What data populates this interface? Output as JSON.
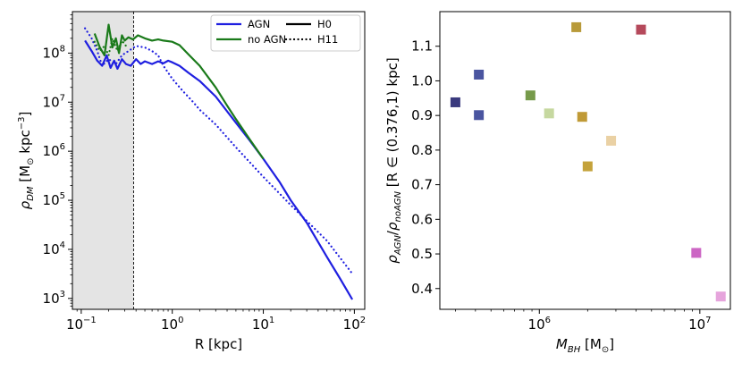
{
  "chart_data": [
    {
      "type": "line",
      "xlabel": "R [kpc]",
      "ylabel": "ρ_DM [M⊙ kpc⁻³]",
      "xscale": "log",
      "yscale": "log",
      "xlim": [
        0.08,
        130
      ],
      "ylim": [
        600,
        700000000
      ],
      "xticks": [
        {
          "value": 0.1,
          "mant": "10",
          "exp": "−1"
        },
        {
          "value": 1,
          "mant": "10",
          "exp": "0"
        },
        {
          "value": 10,
          "mant": "10",
          "exp": "1"
        },
        {
          "value": 100,
          "mant": "10",
          "exp": "2"
        }
      ],
      "yticks": [
        {
          "value": 1000,
          "mant": "10",
          "exp": "3"
        },
        {
          "value": 10000,
          "mant": "10",
          "exp": "4"
        },
        {
          "value": 100000,
          "mant": "10",
          "exp": "5"
        },
        {
          "value": 1000000,
          "mant": "10",
          "exp": "6"
        },
        {
          "value": 10000000,
          "mant": "10",
          "exp": "7"
        },
        {
          "value": 100000000,
          "mant": "10",
          "exp": "8"
        }
      ],
      "shaded_region": {
        "x": [
          0.08,
          0.376
        ],
        "color": "#e4e4e4"
      },
      "vline": 0.376,
      "legend": {
        "placement": "top-right",
        "entries": [
          {
            "label": "AGN",
            "color": "#1f1fe0",
            "style": "solid"
          },
          {
            "label": "H0",
            "color": "#000000",
            "style": "solid"
          },
          {
            "label": "no AGN",
            "color": "#1a7a1a",
            "style": "solid"
          },
          {
            "label": "H11",
            "color": "#000000",
            "style": "dotted"
          }
        ]
      },
      "series": [
        {
          "name": "AGN",
          "halo": "H0",
          "color": "#1f1fe0",
          "style": "solid",
          "x": [
            0.11,
            0.13,
            0.15,
            0.17,
            0.19,
            0.21,
            0.23,
            0.25,
            0.28,
            0.31,
            0.35,
            0.4,
            0.45,
            0.5,
            0.6,
            0.7,
            0.8,
            0.9,
            1.0,
            1.2,
            1.5,
            2.0,
            3.0,
            4.0,
            5.0,
            7.0,
            10,
            15,
            20,
            30,
            50,
            70,
            95
          ],
          "y": [
            180000000,
            110000000,
            70000000,
            55000000,
            90000000,
            50000000,
            70000000,
            48000000,
            75000000,
            60000000,
            55000000,
            75000000,
            60000000,
            68000000,
            60000000,
            68000000,
            62000000,
            70000000,
            65000000,
            55000000,
            40000000,
            27000000,
            13000000,
            6500000,
            3800000,
            1700000,
            700000,
            240000,
            100000,
            35000,
            7000,
            2500,
            950
          ]
        },
        {
          "name": "no AGN",
          "halo": "H0",
          "color": "#1a7a1a",
          "style": "solid",
          "x": [
            0.14,
            0.16,
            0.18,
            0.2,
            0.22,
            0.24,
            0.26,
            0.28,
            0.3,
            0.33,
            0.37,
            0.42,
            0.5,
            0.6,
            0.7,
            0.8,
            1.0,
            1.2,
            1.5,
            2.0,
            3.0,
            4.0,
            5.0,
            7.0,
            10
          ],
          "y": [
            250000000,
            130000000,
            90000000,
            380000000,
            130000000,
            200000000,
            100000000,
            230000000,
            180000000,
            210000000,
            190000000,
            230000000,
            200000000,
            180000000,
            190000000,
            180000000,
            170000000,
            145000000,
            95000000,
            55000000,
            20000000,
            8500000,
            4500000,
            1800000,
            700000
          ]
        },
        {
          "name": "AGN",
          "halo": "H11",
          "color": "#1f1fe0",
          "style": "dotted",
          "x": [
            0.11,
            0.13,
            0.15,
            0.17,
            0.2,
            0.24,
            0.28,
            0.33,
            0.4,
            0.5,
            0.6,
            0.7,
            0.8,
            1.0,
            1.3,
            1.7,
            2.0,
            3.0,
            5.0,
            10,
            20,
            50,
            95
          ],
          "y": [
            320000000,
            200000000,
            110000000,
            55000000,
            75000000,
            60000000,
            90000000,
            110000000,
            140000000,
            130000000,
            110000000,
            90000000,
            55000000,
            30000000,
            17000000,
            10000000,
            7000000,
            3500000,
            1200000,
            300000,
            80000,
            15000,
            3200
          ]
        },
        {
          "name": "no AGN",
          "halo": "H11",
          "color": "#1a7a1a",
          "style": "dotted",
          "x": [
            0.14,
            0.16,
            0.18,
            0.2,
            0.22,
            0.25,
            0.28,
            0.32
          ],
          "y": [
            170000000,
            110000000,
            140000000,
            90000000,
            200000000,
            110000000,
            180000000,
            130000000
          ]
        }
      ]
    },
    {
      "type": "scatter",
      "xlabel": "M_BH [M⊙]",
      "ylabel": "ρ_AGN/ρ_noAGN [R ∈ (0.376,1) kpc]",
      "xscale": "log",
      "xlim": [
        240000,
        15500000
      ],
      "ylim": [
        0.34,
        1.2
      ],
      "xticks": [
        {
          "value": 1000000,
          "mant": "10",
          "exp": "6"
        },
        {
          "value": 10000000,
          "mant": "10",
          "exp": "7"
        }
      ],
      "yticks": [
        "0.4",
        "0.5",
        "0.6",
        "0.7",
        "0.8",
        "0.9",
        "1.0",
        "1.1"
      ],
      "points": [
        {
          "x": 300000,
          "y": 0.938,
          "color": "#3a3a7e"
        },
        {
          "x": 420000,
          "y": 1.018,
          "color": "#4a55a0"
        },
        {
          "x": 420000,
          "y": 0.901,
          "color": "#4a55a0"
        },
        {
          "x": 880000,
          "y": 0.958,
          "color": "#769a4a"
        },
        {
          "x": 1150000,
          "y": 0.906,
          "color": "#c6d8a0"
        },
        {
          "x": 1700000,
          "y": 1.155,
          "color": "#b89a3a"
        },
        {
          "x": 1850000,
          "y": 0.896,
          "color": "#c09a36"
        },
        {
          "x": 2000000,
          "y": 0.753,
          "color": "#c4a23a"
        },
        {
          "x": 2800000,
          "y": 0.827,
          "color": "#ead1a4"
        },
        {
          "x": 4300000,
          "y": 1.148,
          "color": "#b5495b"
        },
        {
          "x": 9500000,
          "y": 0.503,
          "color": "#cc66c4"
        },
        {
          "x": 13500000,
          "y": 0.377,
          "color": "#e6a4dc"
        }
      ]
    }
  ]
}
